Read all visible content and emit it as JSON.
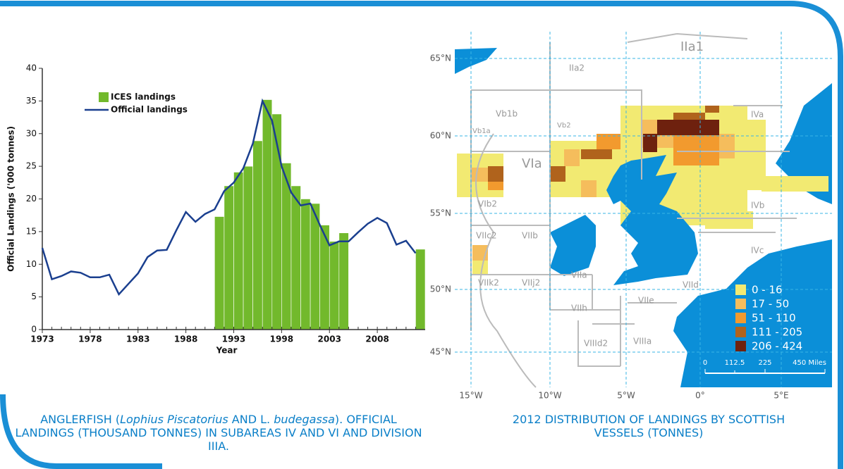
{
  "chart_data": [
    {
      "type": "bar",
      "title": [
        "ANGLERFISH (",
        "Lophius Piscatorius",
        " AND L. ",
        "budegassa",
        "). OFFICIAL LANDINGS (THOUSAND TONNES) IN SUBAREAS IV AND VI AND DIVISION IIIA."
      ],
      "x_label": "Year",
      "y_label": "Official Landings ('000 tonnes)",
      "x": [
        1973,
        1974,
        1975,
        1976,
        1977,
        1978,
        1979,
        1980,
        1981,
        1982,
        1983,
        1984,
        1985,
        1986,
        1987,
        1988,
        1989,
        1990,
        1991,
        1992,
        1993,
        1994,
        1995,
        1996,
        1997,
        1998,
        1999,
        2000,
        2001,
        2002,
        2003,
        2004,
        2005,
        2006,
        2007,
        2008,
        2009,
        2010,
        2011,
        2012
      ],
      "series": [
        {
          "name": "ICES landings",
          "type": "bar",
          "color": "#72b92c",
          "values": [
            null,
            null,
            null,
            null,
            null,
            null,
            null,
            null,
            null,
            null,
            null,
            null,
            null,
            null,
            null,
            null,
            null,
            null,
            17.3,
            22.0,
            24.1,
            25.0,
            28.9,
            35.2,
            33.0,
            25.5,
            22.0,
            20.0,
            19.3,
            16.0,
            13.5,
            14.8,
            null,
            null,
            null,
            null,
            null,
            null,
            null,
            12.3
          ]
        },
        {
          "name": "Official landings",
          "type": "line",
          "color": "#1a3f8f",
          "values": [
            12.5,
            7.7,
            8.2,
            8.9,
            8.7,
            8.0,
            8.0,
            8.4,
            5.4,
            7.0,
            8.6,
            11.1,
            12.1,
            12.2,
            15.2,
            18.0,
            16.5,
            17.7,
            18.4,
            21.2,
            22.5,
            24.7,
            28.5,
            35.0,
            32.0,
            25.0,
            21.0,
            19.0,
            19.3,
            16.0,
            12.9,
            13.5,
            13.5,
            14.9,
            16.2,
            17.1,
            16.3,
            13.0,
            13.6,
            11.7
          ]
        }
      ],
      "xlim": [
        1973,
        2013
      ],
      "xticks": [
        1973,
        1978,
        1983,
        1988,
        1993,
        1998,
        2003,
        2008
      ],
      "ylim": [
        0,
        40
      ],
      "yticks": [
        0,
        5,
        10,
        15,
        20,
        25,
        30,
        35,
        40
      ],
      "grid": false
    }
  ],
  "map": {
    "title": "2012 DISTRIBUTION OF LANDINGS BY SCOTTISH VESSELS (TONNES)",
    "latitudes": [
      "65°N",
      "60°N",
      "55°N",
      "50°N",
      "45°N"
    ],
    "longitudes": [
      "15°W",
      "10°W",
      "5°W",
      "0°",
      "5°E"
    ],
    "areas": [
      "IIa1",
      "IIa2",
      "Vb1b",
      "Vb2",
      "Vb1a",
      "VIa",
      "IVa",
      "VIb2",
      "IVb",
      "VIIc2",
      "VIIb",
      "IVc",
      "VIIk2",
      "VIIj2",
      "VIIa",
      "VIId",
      "VIIe",
      "VIIh",
      "VIIId2",
      "VIIIa"
    ],
    "legend": [
      {
        "label": "0 - 16",
        "color": "#f2ea72"
      },
      {
        "label": "17 - 50",
        "color": "#f5bd5c"
      },
      {
        "label": "51 - 110",
        "color": "#f29a2e"
      },
      {
        "label": "111 - 205",
        "color": "#b0631c"
      },
      {
        "label": "206 - 424",
        "color": "#6e210e"
      }
    ],
    "scale": [
      "0",
      "112.5",
      "225",
      "450 Miles"
    ]
  }
}
